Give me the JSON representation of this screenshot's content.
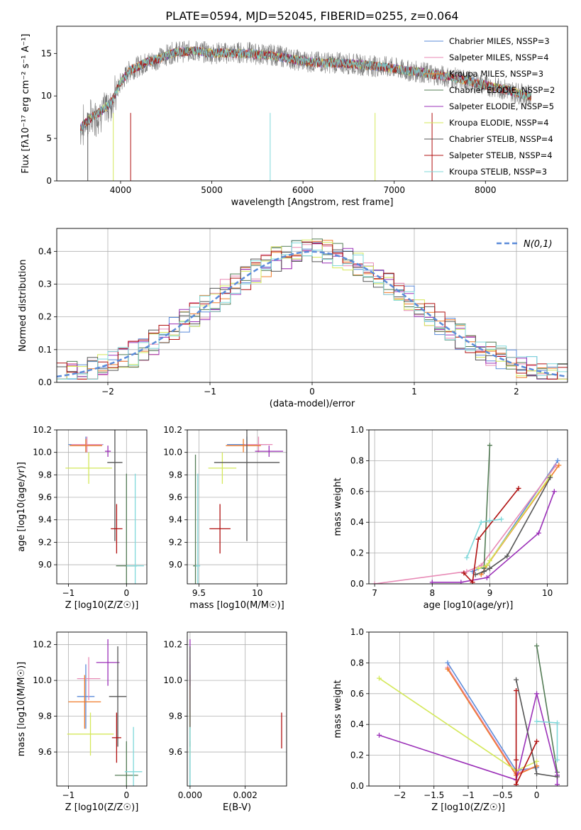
{
  "figure": {
    "title": "PLATE=0594, MJD=52045, FIBERID=0255, z=0.064"
  },
  "series_names": [
    "Chabrier MILES",
    "Salpeter MILES",
    "Kroupa MILES",
    "Chabrier ELODIE",
    "Salpeter ELODIE",
    "Kroupa ELODIE",
    "Chabrier STELIB",
    "Salpeter STELIB",
    "Kroupa STELIB"
  ],
  "colors": [
    "#5b8bd9",
    "#e88ab6",
    "#f07c2a",
    "#547c56",
    "#9b30b8",
    "#d4e85a",
    "#555555",
    "#b01010",
    "#7fd8da"
  ],
  "chart_data": [
    {
      "type": "line",
      "id": "spectrum",
      "xlabel": "wavelength [Angstrom, rest frame]",
      "ylabel": "Flux [fλ10⁻¹⁷ erg cm⁻² s⁻¹ A⁻¹]",
      "xlim": [
        3300,
        8900
      ],
      "ylim": [
        0,
        18.2
      ],
      "xticks": [
        4000,
        5000,
        6000,
        7000,
        8000
      ],
      "yticks": [
        0,
        5,
        10,
        15
      ],
      "grid": false,
      "legend": "upper right",
      "legend_entries": [
        "Chabrier MILES, NSSP=3",
        "Salpeter MILES, NSSP=4",
        "Kroupa MILES, NSSP=3",
        "Chabrier ELODIE, NSSP=2",
        "Salpeter ELODIE, NSSP=5",
        "Kroupa ELODIE, NSSP=4",
        "Chabrier STELIB, NSSP=4",
        "Salpeter STELIB, NSSP=4",
        "Kroupa STELIB, NSSP=3"
      ],
      "data_series": {
        "name": "data",
        "x": [
          3560,
          3620,
          3700,
          3800,
          3900,
          4000,
          4100,
          4200,
          4300,
          4400,
          4500,
          4600,
          4700,
          4800,
          4900,
          5000,
          5100,
          5200,
          5300,
          5400,
          5500,
          5600,
          5700,
          5800,
          5900,
          6000,
          6100,
          6200,
          6300,
          6400,
          6500,
          6600,
          6700,
          6800,
          6900,
          7000,
          7100,
          7200,
          7300,
          7400,
          7500,
          7600,
          7700,
          7800,
          7900,
          8000,
          8100,
          8200,
          8300,
          8400,
          8500
        ],
        "y": [
          6.0,
          6.8,
          7.5,
          8.2,
          9.2,
          11.5,
          13.0,
          13.5,
          14.0,
          14.3,
          14.8,
          15.2,
          15.2,
          15.3,
          15.2,
          15.0,
          15.1,
          15.0,
          15.1,
          15.1,
          14.9,
          14.9,
          14.8,
          14.6,
          14.3,
          14.1,
          14.0,
          14.0,
          13.9,
          13.9,
          13.8,
          13.7,
          13.6,
          13.5,
          13.4,
          13.3,
          13.0,
          12.9,
          12.8,
          12.6,
          12.4,
          12.2,
          12.0,
          11.8,
          11.5,
          11.3,
          11.0,
          10.8,
          10.5,
          10.2,
          10.0
        ]
      },
      "model_series": {
        "x": [
          3560,
          3620,
          3700,
          3800,
          3900,
          4000,
          4100,
          4200,
          4300,
          4400,
          4500,
          4600,
          4700,
          4800,
          4900,
          5000,
          5100,
          5200,
          5300,
          5400,
          5500,
          5600,
          5700,
          5800,
          5900,
          6000,
          6100,
          6200,
          6300,
          6400,
          6500,
          6600,
          6700,
          6800,
          6900,
          7000,
          7100,
          7200,
          7300,
          7400,
          7500,
          7600,
          7700,
          7800,
          7900,
          8000,
          8100,
          8200,
          8300,
          8400,
          8500
        ],
        "y": [
          6.2,
          6.9,
          7.6,
          8.3,
          9.3,
          11.6,
          13.0,
          13.5,
          14.0,
          14.3,
          14.8,
          15.1,
          15.2,
          15.3,
          15.2,
          15.0,
          15.1,
          15.0,
          15.0,
          15.0,
          14.9,
          14.8,
          14.7,
          14.5,
          14.3,
          14.1,
          14.0,
          13.9,
          13.9,
          13.8,
          13.8,
          13.7,
          13.6,
          13.5,
          13.4,
          13.2,
          13.0,
          12.9,
          12.8,
          12.6,
          12.4,
          12.2,
          12.0,
          11.8,
          11.5,
          11.3,
          11.0,
          10.8,
          10.5,
          10.2,
          10.0
        ]
      }
    },
    {
      "type": "line",
      "id": "residual-histogram",
      "xlabel": "(data-model)/error",
      "ylabel": "Normed distribution",
      "xlim": [
        -2.5,
        2.5
      ],
      "ylim": [
        0,
        0.47
      ],
      "xticks": [
        -2,
        -1,
        0,
        1,
        2
      ],
      "yticks": [
        0.0,
        0.1,
        0.2,
        0.3,
        0.4
      ],
      "grid": true,
      "legend": "upper right",
      "legend_entries": [
        "N(0,1)"
      ],
      "bin_width": 0.1
    },
    {
      "type": "scatter",
      "id": "age-vs-Z",
      "xlabel": "Z [log10(Z/Z☉)]",
      "ylabel": "age [log10(age/yr)]",
      "xlim": [
        -1.2,
        0.35
      ],
      "ylim": [
        8.83,
        10.2
      ],
      "xticks": [
        -1,
        0
      ],
      "yticks": [
        9.0,
        9.2,
        9.4,
        9.6,
        9.8,
        10.0,
        10.2
      ],
      "grid": true,
      "points": [
        {
          "x": -0.7,
          "y": 10.07,
          "xerr": 0.3,
          "yerr": 0.07
        },
        {
          "x": -0.68,
          "y": 10.07,
          "xerr": 0.27,
          "yerr": 0.07
        },
        {
          "x": -0.7,
          "y": 10.06,
          "xerr": 0.28,
          "yerr": 0.06
        },
        {
          "x": 0.0,
          "y": 8.99,
          "xerr": 0.18,
          "yerr": 0.82
        },
        {
          "x": -0.32,
          "y": 10.01,
          "xerr": 0.05,
          "yerr": 0.05
        },
        {
          "x": -0.65,
          "y": 9.86,
          "xerr": 0.4,
          "yerr": 0.14
        },
        {
          "x": -0.2,
          "y": 9.91,
          "xerr": 0.13,
          "yerr": 0.7
        },
        {
          "x": -0.17,
          "y": 9.32,
          "xerr": 0.1,
          "yerr": 0.22
        },
        {
          "x": 0.15,
          "y": 8.99,
          "xerr": 0.15,
          "yerr": 0.82
        }
      ]
    },
    {
      "type": "scatter",
      "id": "age-vs-mass",
      "xlabel": "mass [log10(M/M☉)]",
      "ylabel": "",
      "xlim": [
        9.4,
        10.25
      ],
      "ylim": [
        8.83,
        10.2
      ],
      "xticks": [
        9.5,
        10.0
      ],
      "yticks": [
        9.0,
        9.2,
        9.4,
        9.6,
        9.8,
        10.0,
        10.2
      ],
      "grid": true,
      "points": [
        {
          "x": 9.91,
          "y": 10.07,
          "xerr": 0.17,
          "yerr": 0.07
        },
        {
          "x": 10.01,
          "y": 10.07,
          "xerr": 0.12,
          "yerr": 0.07
        },
        {
          "x": 9.88,
          "y": 10.06,
          "xerr": 0.15,
          "yerr": 0.06
        },
        {
          "x": 9.47,
          "y": 8.99,
          "xerr": 0.02,
          "yerr": 0.99
        },
        {
          "x": 10.1,
          "y": 10.01,
          "xerr": 0.12,
          "yerr": 0.05
        },
        {
          "x": 9.7,
          "y": 9.86,
          "xerr": 0.12,
          "yerr": 0.14
        },
        {
          "x": 9.91,
          "y": 9.91,
          "xerr": 0.28,
          "yerr": 0.7
        },
        {
          "x": 9.68,
          "y": 9.32,
          "xerr": 0.09,
          "yerr": 0.22
        },
        {
          "x": 9.49,
          "y": 8.99,
          "xerr": 0.02,
          "yerr": 0.82
        }
      ]
    },
    {
      "type": "line",
      "id": "massweight-vs-age",
      "xlabel": "age [log10(age/yr)]",
      "ylabel": "mass weight",
      "xlim": [
        6.9,
        10.35
      ],
      "ylim": [
        0,
        1.0
      ],
      "xticks": [
        7,
        8,
        9,
        10
      ],
      "yticks": [
        0.0,
        0.2,
        0.4,
        0.6,
        0.8,
        1.0
      ],
      "grid": true,
      "series": [
        {
          "x": [
            8.7,
            8.95,
            10.18
          ],
          "y": [
            0.08,
            0.12,
            0.8
          ]
        },
        {
          "x": [
            7.0,
            8.6,
            8.85,
            10.15
          ],
          "y": [
            0.0,
            0.08,
            0.12,
            0.77
          ]
        },
        {
          "x": [
            8.85,
            8.95,
            10.2
          ],
          "y": [
            0.06,
            0.12,
            0.77
          ]
        },
        {
          "x": [
            8.9,
            9.0
          ],
          "y": [
            0.1,
            0.9
          ]
        },
        {
          "x": [
            8.0,
            8.5,
            8.95,
            9.85,
            10.12
          ],
          "y": [
            0.01,
            0.01,
            0.04,
            0.33,
            0.6
          ]
        },
        {
          "x": [
            8.8,
            8.95,
            9.0,
            10.05
          ],
          "y": [
            0.1,
            0.12,
            0.15,
            0.7
          ]
        },
        {
          "x": [
            8.75,
            8.9,
            9.0,
            9.3,
            10.05
          ],
          "y": [
            0.06,
            0.08,
            0.1,
            0.18,
            0.69
          ]
        },
        {
          "x": [
            8.55,
            8.7,
            8.8,
            9.5
          ],
          "y": [
            0.07,
            0.01,
            0.29,
            0.62
          ]
        },
        {
          "x": [
            8.6,
            8.85,
            9.0,
            9.2
          ],
          "y": [
            0.17,
            0.4,
            0.41,
            0.42
          ]
        }
      ]
    },
    {
      "type": "scatter",
      "id": "mass-vs-Z",
      "xlabel": "Z [log10(Z/Z☉)]",
      "ylabel": "mass [log10(M/M☉)]",
      "xlim": [
        -1.2,
        0.35
      ],
      "ylim": [
        9.41,
        10.27
      ],
      "xticks": [
        -1,
        0
      ],
      "yticks": [
        9.6,
        9.8,
        10.0,
        10.2
      ],
      "grid": true,
      "points": [
        {
          "x": -0.7,
          "y": 9.91,
          "xerr": 0.15,
          "yerr": 0.18
        },
        {
          "x": -0.65,
          "y": 10.01,
          "xerr": 0.2,
          "yerr": 0.12
        },
        {
          "x": -0.72,
          "y": 9.88,
          "xerr": 0.28,
          "yerr": 0.15
        },
        {
          "x": 0.0,
          "y": 9.47,
          "xerr": 0.2,
          "yerr": 0.19
        },
        {
          "x": -0.32,
          "y": 10.1,
          "xerr": 0.2,
          "yerr": 0.13
        },
        {
          "x": -0.62,
          "y": 9.7,
          "xerr": 0.4,
          "yerr": 0.12
        },
        {
          "x": -0.15,
          "y": 9.91,
          "xerr": 0.15,
          "yerr": 0.28
        },
        {
          "x": -0.17,
          "y": 9.68,
          "xerr": 0.08,
          "yerr": 0.14
        },
        {
          "x": 0.12,
          "y": 9.49,
          "xerr": 0.15,
          "yerr": 0.25
        }
      ]
    },
    {
      "type": "scatter",
      "id": "mass-vs-ebv",
      "xlabel": "E(B-V)",
      "ylabel": "",
      "xlim": [
        -0.0001,
        0.0035
      ],
      "ylim": [
        9.41,
        10.27
      ],
      "xticks": [
        0.0,
        0.002
      ],
      "xtick_labels": [
        "0.000",
        "0.002"
      ],
      "yticks": [
        9.6,
        9.8,
        10.0,
        10.2
      ],
      "grid": true,
      "points": [
        {
          "x": 0.0,
          "y": 9.91,
          "yerr": 0.18
        },
        {
          "x": 0.0,
          "y": 10.01,
          "yerr": 0.12
        },
        {
          "x": 0.0,
          "y": 9.88,
          "yerr": 0.15
        },
        {
          "x": 0.0,
          "y": 9.47,
          "yerr": 0.19
        },
        {
          "x": 0.0,
          "y": 10.1,
          "yerr": 0.13
        },
        {
          "x": 0.0,
          "y": 9.7,
          "yerr": 0.12
        },
        {
          "x": 0.0,
          "y": 9.91,
          "yerr": 0.28
        },
        {
          "x": 0.00332,
          "y": 9.72,
          "yerr": 0.1
        },
        {
          "x": 0.0,
          "y": 9.49,
          "yerr": 0.25
        }
      ]
    },
    {
      "type": "line",
      "id": "massweight-vs-Z",
      "xlabel": "Z [log10(Z/Z☉)]",
      "ylabel": "mass weight",
      "xlim": [
        -2.45,
        0.45
      ],
      "ylim": [
        0,
        1.0
      ],
      "xticks": [
        -2.0,
        -1.5,
        -1.0,
        -0.5,
        0.0
      ],
      "yticks": [
        0.0,
        0.2,
        0.4,
        0.6,
        0.8,
        1.0
      ],
      "grid": true,
      "series": [
        {
          "x": [
            -1.3,
            -0.3,
            0.0
          ],
          "y": [
            0.8,
            0.1,
            0.12
          ]
        },
        {
          "x": [
            -1.3,
            -0.3,
            0.0
          ],
          "y": [
            0.77,
            0.08,
            0.13
          ]
        },
        {
          "x": [
            -1.3,
            -0.3,
            0.0
          ],
          "y": [
            0.76,
            0.07,
            0.13
          ]
        },
        {
          "x": [
            0.0,
            0.3
          ],
          "y": [
            0.91,
            0.09
          ]
        },
        {
          "x": [
            -2.3,
            -0.3,
            0.0,
            0.3,
            0.3
          ],
          "y": [
            0.33,
            0.04,
            0.6,
            0.07,
            0.01
          ]
        },
        {
          "x": [
            -2.3,
            -0.3,
            0.0
          ],
          "y": [
            0.7,
            0.1,
            0.16
          ]
        },
        {
          "x": [
            -0.3,
            0.0,
            0.3
          ],
          "y": [
            0.69,
            0.08,
            0.06
          ]
        },
        {
          "x": [
            -0.3,
            -0.3,
            -0.3,
            0.0
          ],
          "y": [
            0.62,
            0.17,
            0.01,
            0.29
          ]
        },
        {
          "x": [
            0.0,
            0.3,
            0.3
          ],
          "y": [
            0.42,
            0.41,
            0.17
          ]
        }
      ]
    }
  ]
}
